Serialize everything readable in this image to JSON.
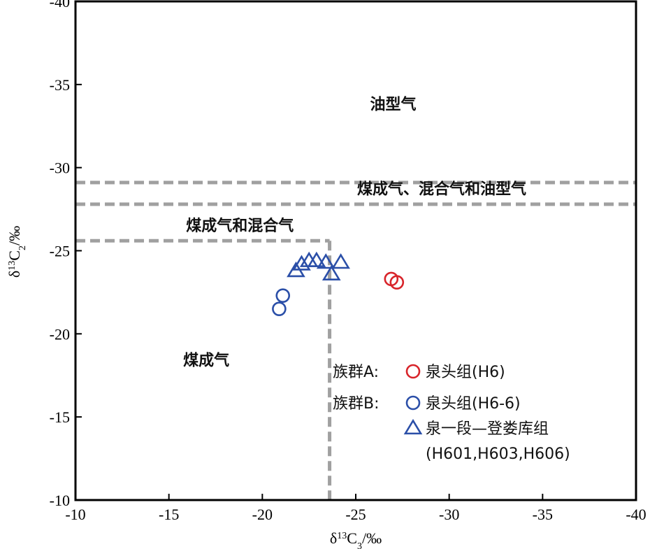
{
  "chart_data": {
    "type": "scatter",
    "xlabel": {
      "main": "δ",
      "sup": "13",
      "c": "C",
      "sub": "3",
      "unit": "/‰"
    },
    "ylabel": {
      "main": "δ",
      "sup": "13",
      "c": "C",
      "sub": "2",
      "unit": "/‰"
    },
    "xlim": [
      -10,
      -40
    ],
    "ylim": [
      -10,
      -40
    ],
    "x_ticks": [
      -10,
      -15,
      -20,
      -25,
      -30,
      -35,
      -40
    ],
    "y_ticks": [
      -10,
      -15,
      -20,
      -25,
      -30,
      -35,
      -40
    ],
    "x_tick_labels": [
      "-10",
      "-15",
      "-20",
      "-25",
      "-30",
      "-35",
      "-40"
    ],
    "y_tick_labels": [
      "-10",
      "-15",
      "-20",
      "-25",
      "-30",
      "-35",
      "-40"
    ],
    "grid": false,
    "regions": [
      {
        "label": "油型气",
        "x": -27,
        "y": -33.5
      },
      {
        "label": "煤成气、混合气和油型气",
        "x": -29.6,
        "y": -28.4
      },
      {
        "label": "煤成气和混合气",
        "x": -18.8,
        "y": -26.2
      },
      {
        "label": "煤成气",
        "x": -17,
        "y": -18.1
      }
    ],
    "boundaries": [
      {
        "from": [
          -10,
          -29.1
        ],
        "to": [
          -40,
          -29.1
        ]
      },
      {
        "from": [
          -10,
          -27.8
        ],
        "to": [
          -40,
          -27.8
        ]
      },
      {
        "from": [
          -10,
          -25.6
        ],
        "to": [
          -23.6,
          -25.6
        ]
      },
      {
        "from": [
          -23.6,
          -25.6
        ],
        "to": [
          -23.6,
          -10
        ]
      }
    ],
    "series": [
      {
        "name": "泉头组(H6)",
        "group": "族群A:",
        "marker": "circle",
        "color": "#d8242a",
        "points": [
          [
            -26.9,
            -23.3
          ],
          [
            -27.2,
            -23.1
          ]
        ]
      },
      {
        "name": "泉头组(H6-6)",
        "group": "族群B:",
        "marker": "circle",
        "color": "#2b4fa8",
        "points": [
          [
            -21.1,
            -22.3
          ],
          [
            -20.9,
            -21.5
          ]
        ]
      },
      {
        "name": "泉一段—登娄库组",
        "name2": "(H601,H603,H606)",
        "group": "",
        "marker": "triangle",
        "color": "#2b4fa8",
        "points": [
          [
            -21.8,
            -23.8
          ],
          [
            -22.1,
            -24.2
          ],
          [
            -22.5,
            -24.4
          ],
          [
            -22.9,
            -24.4
          ],
          [
            -23.4,
            -24.3
          ],
          [
            -23.7,
            -23.6
          ],
          [
            -24.2,
            -24.3
          ]
        ]
      }
    ]
  }
}
